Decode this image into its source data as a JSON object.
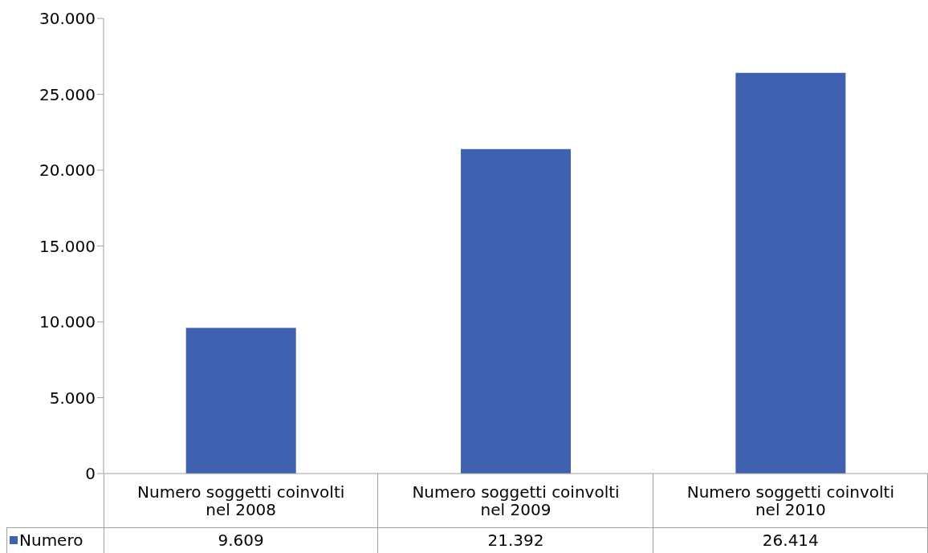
{
  "chart_data": {
    "type": "bar",
    "categories": [
      "Numero soggetti coinvolti nel 2008",
      "Numero soggetti coinvolti nel 2009",
      "Numero soggetti coinvolti nel 2010"
    ],
    "series": [
      {
        "name": "Numero",
        "color": "#4060b0",
        "values": [
          9609,
          21392,
          26414
        ],
        "value_labels": [
          "9.609",
          "21.392",
          "26.414"
        ]
      }
    ],
    "ylim": [
      0,
      30000
    ],
    "yticks": [
      0,
      {
        "value": 5000,
        "label": "5.000"
      },
      {
        "value": 10000,
        "label": "10.000"
      },
      {
        "value": 15000,
        "label": "15.000"
      },
      {
        "value": 20000,
        "label": "20.000"
      },
      {
        "value": 25000,
        "label": "25.000"
      },
      {
        "value": 30000,
        "label": "30.000"
      }
    ],
    "legend": "bottom left",
    "grid": false
  }
}
